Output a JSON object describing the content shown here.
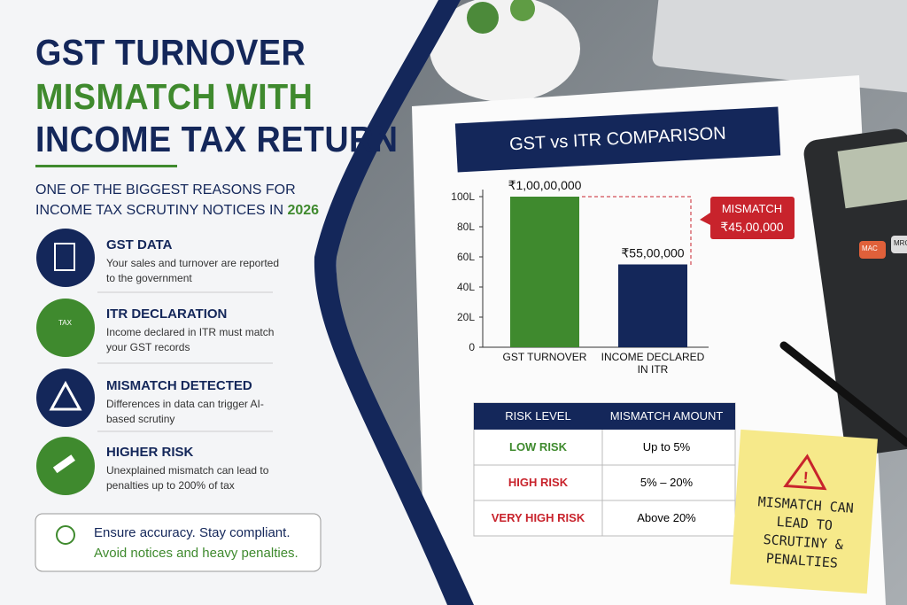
{
  "header": {
    "title_lines": [
      "GST TURNOVER",
      "MISMATCH WITH",
      "INCOME TAX RETURN"
    ],
    "subtitle_lines": [
      "ONE OF THE BIGGEST REASONS FOR",
      "INCOME TAX SCRUTINY NOTICES IN"
    ],
    "year": "2026"
  },
  "items": [
    {
      "title": "GST DATA",
      "text": "Your sales and turnover are reported to the government"
    },
    {
      "title": "ITR DECLARATION",
      "text": "Income declared in ITR must match your GST records",
      "icon": "TAX"
    },
    {
      "title": "MISMATCH DETECTED",
      "text": "Differences in data can trigger AI-based scrutiny"
    },
    {
      "title": "HIGHER RISK",
      "text": "Unexplained mismatch can lead to penalties up to 200% of tax"
    }
  ],
  "footer": {
    "line1": "Ensure accuracy. Stay compliant.",
    "line2": "Avoid notices and heavy penalties."
  },
  "chart_data": {
    "type": "bar",
    "title": "GST vs ITR COMPARISON",
    "categories": [
      "GST TURNOVER",
      "INCOME DECLARED IN ITR"
    ],
    "values": [
      100,
      55
    ],
    "value_labels": [
      "₹1,00,00,000",
      "₹55,00,000"
    ],
    "colors": [
      "#3f8a2e",
      "#14275a"
    ],
    "ylim": [
      0,
      100
    ],
    "yticks": [
      0,
      {
        "value": 20,
        "label": "20L"
      },
      {
        "value": 40,
        "label": "40L"
      },
      {
        "value": 60,
        "label": "60L"
      },
      {
        "value": 80,
        "label": "80L"
      },
      {
        "value": 100,
        "label": "100L"
      }
    ],
    "annotation": {
      "title": "MISMATCH",
      "value": "₹45,00,000"
    }
  },
  "table": {
    "headers": [
      "RISK LEVEL",
      "MISMATCH AMOUNT"
    ],
    "rows": [
      [
        "LOW RISK",
        "Up to 5%"
      ],
      [
        "HIGH RISK",
        "5% – 20%"
      ],
      [
        "VERY HIGH RISK",
        "Above 20%"
      ]
    ]
  },
  "note": {
    "text": "MISMATCH CAN LEAD TO SCRUTINY & PENALTIES"
  },
  "calculator": {
    "keys": [
      "MAC",
      "MRC"
    ]
  }
}
